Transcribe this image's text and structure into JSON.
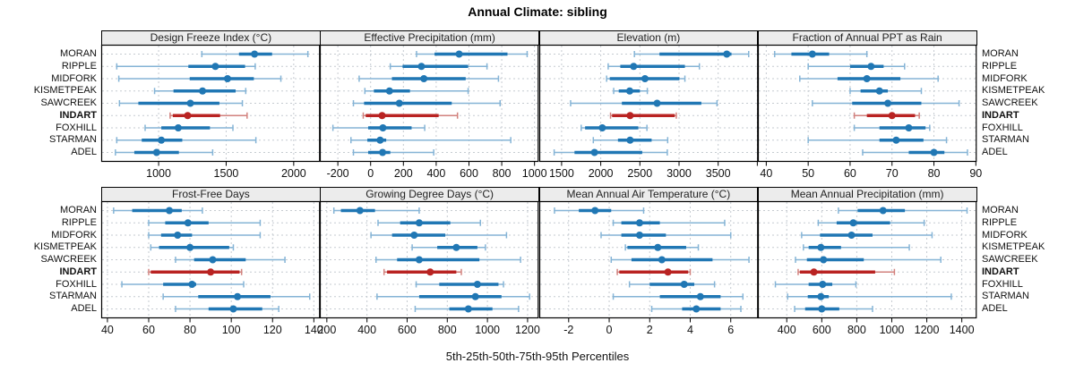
{
  "title": "Annual Climate: sibling",
  "caption": "5th-25th-50th-75th-95th Percentiles",
  "stations": [
    "MORAN",
    "RIPPLE",
    "MIDFORK",
    "KISMETPEAK",
    "SAWCREEK",
    "INDART",
    "FOXHILL",
    "STARMAN",
    "ADEL"
  ],
  "highlighted_station": "INDART",
  "colors": {
    "normal": "#2077b4",
    "normal_light": "#85b4d6",
    "highlight": "#b92322",
    "highlight_light": "#d2827e",
    "grid": "#c6cbd1",
    "strip_bg": "#ececec",
    "border": "#000000"
  },
  "chart_data": {
    "type": "percentile-dotplot-trellis",
    "layout": "2 rows x 4 cols",
    "percentiles": [
      "5th",
      "25th",
      "50th",
      "75th",
      "95th"
    ],
    "panels": [
      {
        "title": "Design Freeze Index (°C)",
        "row": 0,
        "col": 0,
        "xlim": [
          575,
          2195
        ],
        "ticks": [
          1000,
          1500,
          2000
        ],
        "tick_labels": [
          "1000",
          "1500",
          "2000"
        ],
        "series": {
          "MORAN": [
            1320,
            1595,
            1710,
            1840,
            2105
          ],
          "RIPPLE": [
            690,
            1220,
            1420,
            1640,
            1715
          ],
          "MIDFORK": [
            705,
            1230,
            1510,
            1705,
            1905
          ],
          "KISMETPEAK": [
            970,
            1110,
            1325,
            1570,
            1645
          ],
          "SAWCREEK": [
            710,
            850,
            1235,
            1450,
            1620
          ],
          "INDART": [
            1085,
            1105,
            1215,
            1455,
            1655
          ],
          "FOXHILL": [
            900,
            1020,
            1145,
            1380,
            1550
          ],
          "STARMAN": [
            690,
            875,
            1020,
            1175,
            1720
          ],
          "ADEL": [
            680,
            820,
            985,
            1150,
            1400
          ]
        }
      },
      {
        "title": "Effective Precipitation (mm)",
        "row": 0,
        "col": 1,
        "xlim": [
          -310,
          1025
        ],
        "ticks": [
          -200,
          0,
          200,
          400,
          600,
          800,
          1000
        ],
        "tick_labels": [
          "-200",
          "0",
          "200",
          "400",
          "600",
          "800",
          "1000"
        ],
        "series": {
          "MORAN": [
            280,
            390,
            540,
            835,
            955
          ],
          "RIPPLE": [
            120,
            195,
            310,
            595,
            710
          ],
          "MIDFORK": [
            -70,
            130,
            325,
            580,
            780
          ],
          "KISMETPEAK": [
            -35,
            20,
            115,
            240,
            595
          ],
          "SAWCREEK": [
            -105,
            -40,
            175,
            495,
            790
          ],
          "INDART": [
            -45,
            -30,
            70,
            415,
            530
          ],
          "FOXHILL": [
            -230,
            -15,
            75,
            250,
            330
          ],
          "STARMAN": [
            -120,
            -20,
            58,
            95,
            855
          ],
          "ADEL": [
            -105,
            -15,
            73,
            120,
            385
          ]
        }
      },
      {
        "title": "Elevation (m)",
        "row": 0,
        "col": 2,
        "xlim": [
          1215,
          4010
        ],
        "ticks": [
          1500,
          2000,
          2500,
          3000,
          3500,
          4000
        ],
        "tick_labels": [
          "1500",
          "2000",
          "2500",
          "3000",
          "3500",
          ""
        ],
        "series": {
          "MORAN": [
            2430,
            2750,
            3610,
            3670,
            3890
          ],
          "RIPPLE": [
            2095,
            2250,
            2420,
            3075,
            3260
          ],
          "MIDFORK": [
            2075,
            2115,
            2565,
            3005,
            3075
          ],
          "KISMETPEAK": [
            2165,
            2230,
            2370,
            2500,
            2595
          ],
          "SAWCREEK": [
            1615,
            2270,
            2720,
            3285,
            3485
          ],
          "INDART": [
            2125,
            2145,
            2375,
            2945,
            2965
          ],
          "FOXHILL": [
            1750,
            1800,
            2020,
            2480,
            2590
          ],
          "STARMAN": [
            1905,
            2220,
            2375,
            2650,
            2855
          ],
          "ADEL": [
            1405,
            1665,
            1920,
            2530,
            2850
          ]
        }
      },
      {
        "title": "Fraction of Annual PPT as Rain",
        "row": 0,
        "col": 3,
        "xlim": [
          38,
          90.2
        ],
        "ticks": [
          40,
          50,
          60,
          70,
          80,
          90
        ],
        "tick_labels": [
          "40",
          "50",
          "60",
          "70",
          "80",
          "90"
        ],
        "series": {
          "MORAN": [
            42,
            46,
            51,
            55,
            64
          ],
          "RIPPLE": [
            50,
            60,
            65,
            68,
            73
          ],
          "MIDFORK": [
            48,
            57,
            64,
            72,
            81
          ],
          "KISMETPEAK": [
            60,
            62.5,
            67,
            69,
            77
          ],
          "SAWCREEK": [
            51,
            60.5,
            69,
            77,
            86
          ],
          "INDART": [
            61,
            64,
            70,
            75.5,
            76.5
          ],
          "FOXHILL": [
            61,
            67,
            74,
            78,
            79
          ],
          "STARMAN": [
            50,
            67,
            71,
            77.5,
            83
          ],
          "ADEL": [
            63,
            74,
            80,
            82.5,
            88
          ]
        }
      },
      {
        "title": "Frost-Free Days",
        "row": 1,
        "col": 0,
        "xlim": [
          37,
          143
        ],
        "ticks": [
          40,
          60,
          80,
          100,
          120,
          140
        ],
        "tick_labels": [
          "40",
          "60",
          "80",
          "100",
          "120",
          "140"
        ],
        "series": {
          "MORAN": [
            43,
            52,
            70,
            76,
            86
          ],
          "RIPPLE": [
            60,
            68,
            79,
            89,
            114
          ],
          "MIDFORK": [
            60,
            66,
            74,
            81,
            114
          ],
          "KISMETPEAK": [
            61,
            65,
            80,
            99,
            101
          ],
          "SAWCREEK": [
            73,
            82,
            91,
            107,
            126
          ],
          "INDART": [
            60,
            61,
            90,
            104,
            105
          ],
          "FOXHILL": [
            47,
            67,
            81,
            83,
            106
          ],
          "STARMAN": [
            67,
            84,
            103,
            119,
            138
          ],
          "ADEL": [
            73,
            89,
            101,
            115,
            123
          ]
        }
      },
      {
        "title": "Growing Degree Days (°C)",
        "row": 1,
        "col": 1,
        "xlim": [
          165,
          1255
        ],
        "ticks": [
          200,
          400,
          600,
          800,
          1000,
          1200
        ],
        "tick_labels": [
          "200",
          "400",
          "600",
          "800",
          "1000",
          "1200"
        ],
        "series": {
          "MORAN": [
            235,
            270,
            365,
            440,
            660
          ],
          "RIPPLE": [
            455,
            565,
            660,
            815,
            965
          ],
          "MIDFORK": [
            420,
            525,
            635,
            790,
            1095
          ],
          "KISMETPEAK": [
            625,
            750,
            845,
            950,
            990
          ],
          "SAWCREEK": [
            445,
            550,
            660,
            960,
            1165
          ],
          "INDART": [
            485,
            500,
            715,
            845,
            870
          ],
          "FOXHILL": [
            645,
            760,
            950,
            1055,
            1080
          ],
          "STARMAN": [
            450,
            660,
            940,
            1070,
            1210
          ],
          "ADEL": [
            640,
            810,
            905,
            1025,
            1155
          ]
        }
      },
      {
        "title": "Mean Annual Air Temperature (°C)",
        "row": 1,
        "col": 2,
        "xlim": [
          -3.45,
          7.35
        ],
        "ticks": [
          -2,
          0,
          2,
          4,
          6
        ],
        "tick_labels": [
          "-2",
          "0",
          "2",
          "4",
          "6"
        ],
        "series": {
          "MORAN": [
            -2.7,
            -1.5,
            -0.7,
            0.1,
            1.7
          ],
          "RIPPLE": [
            0.2,
            0.6,
            1.5,
            2.5,
            5.7
          ],
          "MIDFORK": [
            -0.4,
            0.6,
            1.5,
            2.8,
            6.0
          ],
          "KISMETPEAK": [
            0.8,
            0.9,
            2.4,
            3.8,
            4.4
          ],
          "SAWCREEK": [
            0.1,
            1.1,
            2.6,
            5.1,
            6.9
          ],
          "INDART": [
            0.4,
            0.5,
            2.9,
            3.9,
            4.0
          ],
          "FOXHILL": [
            1.0,
            2.0,
            3.7,
            4.2,
            5.2
          ],
          "STARMAN": [
            0.2,
            2.5,
            4.5,
            5.5,
            6.6
          ],
          "ADEL": [
            2.1,
            3.6,
            4.3,
            5.5,
            6.5
          ]
        }
      },
      {
        "title": "Mean Annual Precipitation (mm)",
        "row": 1,
        "col": 3,
        "xlim": [
          235,
          1485
        ],
        "ticks": [
          400,
          600,
          800,
          1000,
          1200,
          1400
        ],
        "tick_labels": [
          "400",
          "600",
          "800",
          "1000",
          "1200",
          "1400"
        ],
        "series": {
          "MORAN": [
            695,
            805,
            950,
            1075,
            1430
          ],
          "RIPPLE": [
            580,
            685,
            780,
            990,
            1185
          ],
          "MIDFORK": [
            485,
            590,
            770,
            890,
            1230
          ],
          "KISMETPEAK": [
            495,
            525,
            595,
            710,
            1100
          ],
          "SAWCREEK": [
            450,
            515,
            610,
            840,
            1280
          ],
          "INDART": [
            465,
            475,
            555,
            905,
            1015
          ],
          "FOXHILL": [
            335,
            525,
            605,
            660,
            795
          ],
          "STARMAN": [
            405,
            520,
            595,
            640,
            1340
          ],
          "ADEL": [
            445,
            505,
            600,
            700,
            890
          ]
        }
      }
    ]
  }
}
